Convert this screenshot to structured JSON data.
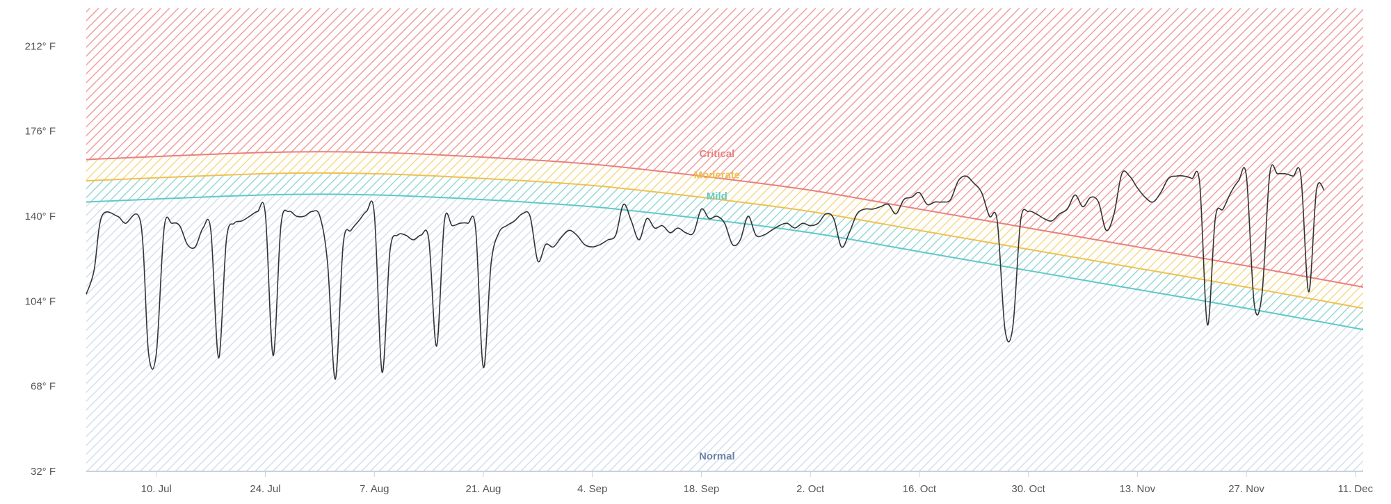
{
  "chart_data": {
    "type": "line",
    "title": "",
    "xlabel": "",
    "ylabel": "",
    "ylim": [
      32,
      228
    ],
    "yticks": [
      {
        "value": 32,
        "label": "32° F"
      },
      {
        "value": 68,
        "label": "68° F"
      },
      {
        "value": 104,
        "label": "104° F"
      },
      {
        "value": 140,
        "label": "140° F"
      },
      {
        "value": 176,
        "label": "176° F"
      },
      {
        "value": 212,
        "label": "212° F"
      }
    ],
    "xlim": [
      "2024-07-01",
      "2024-12-12"
    ],
    "xticks": [
      {
        "date": "2024-07-10",
        "label": "10. Jul"
      },
      {
        "date": "2024-07-24",
        "label": "24. Jul"
      },
      {
        "date": "2024-08-07",
        "label": "7. Aug"
      },
      {
        "date": "2024-08-21",
        "label": "21. Aug"
      },
      {
        "date": "2024-09-04",
        "label": "4. Sep"
      },
      {
        "date": "2024-09-18",
        "label": "18. Sep"
      },
      {
        "date": "2024-10-02",
        "label": "2. Oct"
      },
      {
        "date": "2024-10-16",
        "label": "16. Oct"
      },
      {
        "date": "2024-10-30",
        "label": "30. Oct"
      },
      {
        "date": "2024-11-13",
        "label": "13. Nov"
      },
      {
        "date": "2024-11-27",
        "label": "27. Nov"
      },
      {
        "date": "2024-12-11",
        "label": "11. Dec"
      }
    ],
    "grid": false,
    "bands": [
      {
        "name": "Critical",
        "color": "#e88080",
        "label_date": "2024-09-20",
        "label_value": 165,
        "boundary": [
          [
            "2024-07-01",
            164
          ],
          [
            "2024-07-24",
            167
          ],
          [
            "2024-08-07",
            167
          ],
          [
            "2024-08-21",
            165
          ],
          [
            "2024-09-04",
            162
          ],
          [
            "2024-09-18",
            157
          ],
          [
            "2024-10-02",
            151
          ],
          [
            "2024-10-16",
            143
          ],
          [
            "2024-10-30",
            135
          ],
          [
            "2024-11-13",
            127
          ],
          [
            "2024-11-27",
            119
          ],
          [
            "2024-12-12",
            110
          ]
        ]
      },
      {
        "name": "Moderate",
        "color": "#f0c050",
        "label_date": "2024-09-20",
        "label_value": 156,
        "boundary": [
          [
            "2024-07-01",
            155
          ],
          [
            "2024-07-24",
            158
          ],
          [
            "2024-08-07",
            158
          ],
          [
            "2024-08-21",
            156
          ],
          [
            "2024-09-04",
            153
          ],
          [
            "2024-09-18",
            148
          ],
          [
            "2024-10-02",
            142
          ],
          [
            "2024-10-16",
            134
          ],
          [
            "2024-10-30",
            126
          ],
          [
            "2024-11-13",
            118
          ],
          [
            "2024-11-27",
            110
          ],
          [
            "2024-12-12",
            101
          ]
        ]
      },
      {
        "name": "Mild",
        "color": "#60c8c8",
        "label_date": "2024-09-20",
        "label_value": 147,
        "boundary": [
          [
            "2024-07-01",
            146
          ],
          [
            "2024-07-24",
            149
          ],
          [
            "2024-08-07",
            149
          ],
          [
            "2024-08-21",
            147
          ],
          [
            "2024-09-04",
            144
          ],
          [
            "2024-09-18",
            139
          ],
          [
            "2024-10-02",
            133
          ],
          [
            "2024-10-16",
            125
          ],
          [
            "2024-10-30",
            117
          ],
          [
            "2024-11-13",
            109
          ],
          [
            "2024-11-27",
            101
          ],
          [
            "2024-12-12",
            92
          ]
        ]
      },
      {
        "name": "Normal",
        "color": "#8aaac8",
        "label_date": "2024-09-20",
        "label_value": 37,
        "boundary": [
          [
            "2024-07-01",
            32
          ],
          [
            "2024-12-12",
            32
          ]
        ]
      }
    ],
    "series": [
      {
        "color": "#333333",
        "points": [
          [
            "2024-07-01",
            107
          ],
          [
            "2024-07-02",
            117
          ],
          [
            "2024-07-03",
            140
          ],
          [
            "2024-07-05",
            140
          ],
          [
            "2024-07-06",
            137
          ],
          [
            "2024-07-08",
            137
          ],
          [
            "2024-07-09",
            82
          ],
          [
            "2024-07-10",
            82
          ],
          [
            "2024-07-11",
            135
          ],
          [
            "2024-07-12",
            137
          ],
          [
            "2024-07-13",
            136
          ],
          [
            "2024-07-14",
            128
          ],
          [
            "2024-07-15",
            127
          ],
          [
            "2024-07-16",
            135
          ],
          [
            "2024-07-17",
            134
          ],
          [
            "2024-07-18",
            80
          ],
          [
            "2024-07-19",
            130
          ],
          [
            "2024-07-20",
            137
          ],
          [
            "2024-07-21",
            138
          ],
          [
            "2024-07-22",
            140
          ],
          [
            "2024-07-23",
            142
          ],
          [
            "2024-07-24",
            141
          ],
          [
            "2024-07-25",
            81
          ],
          [
            "2024-07-26",
            136
          ],
          [
            "2024-07-27",
            142
          ],
          [
            "2024-07-28",
            140
          ],
          [
            "2024-07-29",
            140
          ],
          [
            "2024-07-30",
            142
          ],
          [
            "2024-07-31",
            140
          ],
          [
            "2024-08-01",
            120
          ],
          [
            "2024-08-02",
            71
          ],
          [
            "2024-08-03",
            128
          ],
          [
            "2024-08-04",
            134
          ],
          [
            "2024-08-05",
            138
          ],
          [
            "2024-08-06",
            142
          ],
          [
            "2024-08-07",
            141
          ],
          [
            "2024-08-08",
            74
          ],
          [
            "2024-08-09",
            125
          ],
          [
            "2024-08-10",
            132
          ],
          [
            "2024-08-11",
            132
          ],
          [
            "2024-08-12",
            130
          ],
          [
            "2024-08-13",
            132
          ],
          [
            "2024-08-14",
            130
          ],
          [
            "2024-08-15",
            85
          ],
          [
            "2024-08-16",
            138
          ],
          [
            "2024-08-17",
            136
          ],
          [
            "2024-08-18",
            137
          ],
          [
            "2024-08-19",
            137
          ],
          [
            "2024-08-20",
            135
          ],
          [
            "2024-08-21",
            76
          ],
          [
            "2024-08-22",
            120
          ],
          [
            "2024-08-23",
            133
          ],
          [
            "2024-08-24",
            136
          ],
          [
            "2024-08-25",
            138
          ],
          [
            "2024-08-26",
            141
          ],
          [
            "2024-08-27",
            140
          ],
          [
            "2024-08-28",
            121
          ],
          [
            "2024-08-29",
            128
          ],
          [
            "2024-08-30",
            127
          ],
          [
            "2024-08-31",
            131
          ],
          [
            "2024-09-01",
            134
          ],
          [
            "2024-09-02",
            132
          ],
          [
            "2024-09-03",
            128
          ],
          [
            "2024-09-04",
            127
          ],
          [
            "2024-09-05",
            128
          ],
          [
            "2024-09-06",
            130
          ],
          [
            "2024-09-07",
            132
          ],
          [
            "2024-09-08",
            145
          ],
          [
            "2024-09-09",
            138
          ],
          [
            "2024-09-10",
            130
          ],
          [
            "2024-09-11",
            139
          ],
          [
            "2024-09-12",
            135
          ],
          [
            "2024-09-13",
            136
          ],
          [
            "2024-09-14",
            133
          ],
          [
            "2024-09-15",
            135
          ],
          [
            "2024-09-16",
            133
          ],
          [
            "2024-09-17",
            133
          ],
          [
            "2024-09-18",
            143
          ],
          [
            "2024-09-19",
            139
          ],
          [
            "2024-09-20",
            140
          ],
          [
            "2024-09-21",
            137
          ],
          [
            "2024-09-22",
            128
          ],
          [
            "2024-09-23",
            130
          ],
          [
            "2024-09-24",
            140
          ],
          [
            "2024-09-25",
            132
          ],
          [
            "2024-09-26",
            132
          ],
          [
            "2024-09-27",
            134
          ],
          [
            "2024-09-28",
            136
          ],
          [
            "2024-09-29",
            137
          ],
          [
            "2024-09-30",
            135
          ],
          [
            "2024-10-01",
            137
          ],
          [
            "2024-10-02",
            136
          ],
          [
            "2024-10-03",
            137
          ],
          [
            "2024-10-04",
            141
          ],
          [
            "2024-10-05",
            139
          ],
          [
            "2024-10-06",
            127
          ],
          [
            "2024-10-07",
            133
          ],
          [
            "2024-10-08",
            141
          ],
          [
            "2024-10-09",
            143
          ],
          [
            "2024-10-10",
            143
          ],
          [
            "2024-10-11",
            144
          ],
          [
            "2024-10-12",
            145
          ],
          [
            "2024-10-13",
            141
          ],
          [
            "2024-10-14",
            147
          ],
          [
            "2024-10-15",
            148
          ],
          [
            "2024-10-16",
            150
          ],
          [
            "2024-10-17",
            145
          ],
          [
            "2024-10-18",
            146
          ],
          [
            "2024-10-19",
            146
          ],
          [
            "2024-10-20",
            147
          ],
          [
            "2024-10-21",
            155
          ],
          [
            "2024-10-22",
            157
          ],
          [
            "2024-10-23",
            154
          ],
          [
            "2024-10-24",
            150
          ],
          [
            "2024-10-25",
            140
          ],
          [
            "2024-10-26",
            138
          ],
          [
            "2024-10-27",
            92
          ],
          [
            "2024-10-28",
            93
          ],
          [
            "2024-10-29",
            138
          ],
          [
            "2024-10-30",
            142
          ],
          [
            "2024-10-31",
            141
          ],
          [
            "2024-11-01",
            139
          ],
          [
            "2024-11-02",
            138
          ],
          [
            "2024-11-03",
            141
          ],
          [
            "2024-11-04",
            143
          ],
          [
            "2024-11-05",
            149
          ],
          [
            "2024-11-06",
            144
          ],
          [
            "2024-11-07",
            148
          ],
          [
            "2024-11-08",
            146
          ],
          [
            "2024-11-09",
            134
          ],
          [
            "2024-11-10",
            141
          ],
          [
            "2024-11-11",
            158
          ],
          [
            "2024-11-12",
            157
          ],
          [
            "2024-11-13",
            152
          ],
          [
            "2024-11-14",
            148
          ],
          [
            "2024-11-15",
            146
          ],
          [
            "2024-11-16",
            150
          ],
          [
            "2024-11-17",
            156
          ],
          [
            "2024-11-18",
            157
          ],
          [
            "2024-11-19",
            157
          ],
          [
            "2024-11-20",
            156
          ],
          [
            "2024-11-21",
            154
          ],
          [
            "2024-11-22",
            94
          ],
          [
            "2024-11-23",
            139
          ],
          [
            "2024-11-24",
            143
          ],
          [
            "2024-11-25",
            150
          ],
          [
            "2024-11-26",
            155
          ],
          [
            "2024-11-27",
            157
          ],
          [
            "2024-11-28",
            103
          ],
          [
            "2024-11-29",
            107
          ],
          [
            "2024-11-30",
            158
          ],
          [
            "2024-12-01",
            158
          ],
          [
            "2024-12-02",
            158
          ],
          [
            "2024-12-03",
            157
          ],
          [
            "2024-12-04",
            157
          ],
          [
            "2024-12-05",
            108
          ],
          [
            "2024-12-06",
            151
          ],
          [
            "2024-12-07",
            151
          ]
        ]
      }
    ]
  }
}
